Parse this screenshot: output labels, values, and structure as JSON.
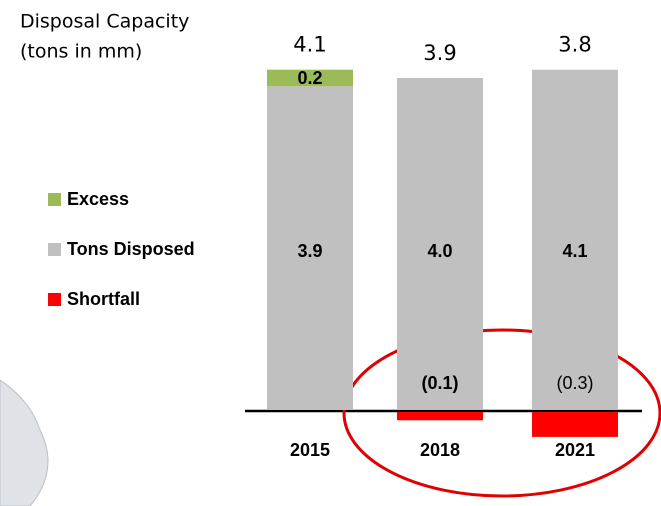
{
  "chart_data": {
    "type": "bar",
    "stacked": true,
    "title_lines": [
      "Disposal Capacity",
      "(tons in mm)"
    ],
    "categories": [
      "2015",
      "2018",
      "2021"
    ],
    "totals": [
      4.1,
      3.9,
      3.8
    ],
    "series": [
      {
        "name": "Excess",
        "color": "#9bbb59",
        "values": [
          0.2,
          null,
          null
        ]
      },
      {
        "name": "Tons Disposed",
        "color": "#c0c0c0",
        "values": [
          3.9,
          4.0,
          4.1
        ],
        "value_labels": [
          "3.9",
          "4.0",
          "4.1"
        ]
      },
      {
        "name": "Shortfall",
        "color": "#ff0000",
        "values": [
          null,
          -0.1,
          -0.3
        ],
        "value_labels": [
          null,
          "(0.1)",
          "(0.3)"
        ]
      }
    ]
  }
}
